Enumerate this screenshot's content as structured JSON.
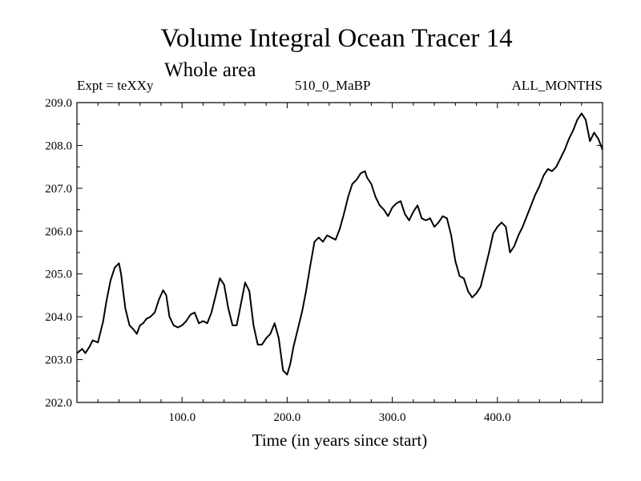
{
  "chart_data": {
    "type": "line",
    "title": "Volume Integral Ocean Tracer 14",
    "subtitle": "Whole area",
    "label_left": "Expt = teXXy",
    "label_center": "510_0_MaBP",
    "label_right": "ALL_MONTHS",
    "xlabel": "Time (in years since start)",
    "ylabel": "",
    "xlim": [
      0,
      500
    ],
    "ylim": [
      202.0,
      209.0
    ],
    "x_ticks": [
      100,
      200,
      300,
      400
    ],
    "x_tick_labels": [
      "100.0",
      "200.0",
      "300.0",
      "400.0"
    ],
    "y_ticks": [
      202,
      203,
      204,
      205,
      206,
      207,
      208,
      209
    ],
    "y_tick_labels": [
      "202.0",
      "203.0",
      "204.0",
      "205.0",
      "206.0",
      "207.0",
      "208.0",
      "209.0"
    ],
    "series": [
      {
        "name": "Volume Integral Ocean Tracer 14",
        "x": [
          0,
          5,
          8,
          12,
          15,
          20,
          25,
          28,
          32,
          36,
          40,
          42,
          44,
          46,
          50,
          54,
          57,
          60,
          63,
          66,
          70,
          74,
          78,
          82,
          85,
          88,
          92,
          96,
          100,
          104,
          108,
          112,
          116,
          120,
          124,
          128,
          132,
          136,
          140,
          144,
          148,
          152,
          156,
          160,
          164,
          168,
          172,
          176,
          180,
          184,
          188,
          192,
          196,
          200,
          203,
          206,
          210,
          214,
          218,
          222,
          226,
          230,
          234,
          238,
          242,
          246,
          250,
          254,
          258,
          262,
          266,
          270,
          274,
          276,
          280,
          284,
          288,
          292,
          296,
          300,
          304,
          308,
          312,
          316,
          320,
          324,
          328,
          332,
          336,
          340,
          344,
          348,
          352,
          356,
          360,
          364,
          368,
          372,
          376,
          380,
          384,
          388,
          392,
          396,
          400,
          404,
          408,
          412,
          416,
          420,
          424,
          428,
          432,
          436,
          440,
          444,
          448,
          452,
          456,
          460,
          464,
          468,
          472,
          476,
          480,
          484,
          488,
          492,
          496,
          500
        ],
        "values": [
          203.15,
          203.25,
          203.15,
          203.3,
          203.45,
          203.4,
          203.9,
          204.35,
          204.85,
          205.15,
          205.25,
          205.0,
          204.6,
          204.2,
          203.8,
          203.7,
          203.6,
          203.8,
          203.85,
          203.95,
          204.0,
          204.1,
          204.4,
          204.62,
          204.5,
          204.0,
          203.8,
          203.75,
          203.8,
          203.9,
          204.05,
          204.1,
          203.85,
          203.9,
          203.85,
          204.1,
          204.5,
          204.9,
          204.75,
          204.2,
          203.8,
          203.8,
          204.3,
          204.8,
          204.6,
          203.8,
          203.35,
          203.35,
          203.5,
          203.6,
          203.85,
          203.5,
          202.75,
          202.65,
          202.9,
          203.3,
          203.7,
          204.1,
          204.6,
          205.2,
          205.75,
          205.85,
          205.75,
          205.9,
          205.85,
          205.8,
          206.05,
          206.4,
          206.8,
          207.1,
          207.2,
          207.35,
          207.4,
          207.25,
          207.1,
          206.8,
          206.6,
          206.5,
          206.35,
          206.55,
          206.65,
          206.7,
          206.4,
          206.25,
          206.45,
          206.6,
          206.3,
          206.25,
          206.3,
          206.1,
          206.2,
          206.35,
          206.3,
          205.9,
          205.3,
          204.95,
          204.9,
          204.6,
          204.45,
          204.55,
          204.7,
          205.1,
          205.5,
          205.95,
          206.1,
          206.2,
          206.1,
          205.5,
          205.65,
          205.9,
          206.1,
          206.35,
          206.6,
          206.85,
          207.05,
          207.3,
          207.45,
          207.4,
          207.5,
          207.7,
          207.9,
          208.15,
          208.35,
          208.6,
          208.75,
          208.6,
          208.1,
          208.3,
          208.15,
          207.9
        ]
      }
    ]
  }
}
